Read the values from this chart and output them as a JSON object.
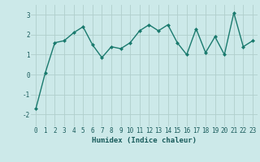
{
  "x": [
    0,
    1,
    2,
    3,
    4,
    5,
    6,
    7,
    8,
    9,
    10,
    11,
    12,
    13,
    14,
    15,
    16,
    17,
    18,
    19,
    20,
    21,
    22,
    23
  ],
  "y": [
    -1.7,
    0.1,
    1.6,
    1.7,
    2.1,
    2.4,
    1.5,
    0.85,
    1.4,
    1.3,
    1.6,
    2.2,
    2.5,
    2.2,
    2.5,
    1.6,
    1.0,
    2.3,
    1.1,
    1.9,
    1.0,
    3.1,
    1.4,
    1.7
  ],
  "line_color": "#1a7a6e",
  "marker": "D",
  "marker_size": 2.0,
  "xlabel": "Humidex (Indice chaleur)",
  "xlim": [
    -0.5,
    23.5
  ],
  "ylim": [
    -2.6,
    3.5
  ],
  "yticks": [
    -2,
    -1,
    0,
    1,
    2,
    3
  ],
  "xticks": [
    0,
    1,
    2,
    3,
    4,
    5,
    6,
    7,
    8,
    9,
    10,
    11,
    12,
    13,
    14,
    15,
    16,
    17,
    18,
    19,
    20,
    21,
    22,
    23
  ],
  "bg_color": "#cce9e9",
  "grid_color": "#b0cecc",
  "tick_color": "#1a5c5c",
  "label_color": "#1a5c5c",
  "tick_fontsize": 5.5,
  "xlabel_fontsize": 6.5,
  "linewidth": 1.0
}
